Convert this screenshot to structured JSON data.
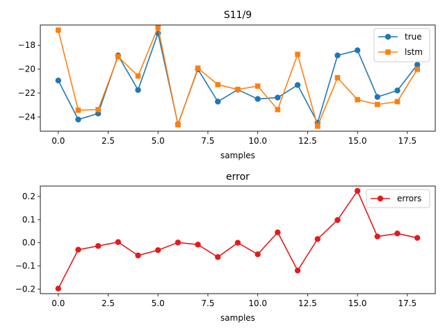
{
  "chart_data": [
    {
      "type": "line",
      "title": "S11/9",
      "xlabel": "samples",
      "ylabel": "",
      "xlim": [
        -0.9,
        18.9
      ],
      "ylim": [
        -25.2,
        -16.3
      ],
      "xticks": [
        0.0,
        2.5,
        5.0,
        7.5,
        10.0,
        12.5,
        15.0,
        17.5
      ],
      "xtick_labels": [
        "0.0",
        "2.5",
        "5.0",
        "7.5",
        "10.0",
        "12.5",
        "15.0",
        "17.5"
      ],
      "yticks": [
        -18,
        -20,
        -22,
        -24
      ],
      "ytick_labels": [
        "−18",
        "−20",
        "−22",
        "−24"
      ],
      "legend_position": "top-right",
      "grid": false,
      "x": [
        0,
        1,
        2,
        3,
        4,
        5,
        6,
        7,
        8,
        9,
        10,
        11,
        12,
        13,
        14,
        15,
        16,
        17,
        18
      ],
      "series": [
        {
          "name": "true",
          "color": "#1f77b4",
          "marker": "circle",
          "values": [
            -20.95,
            -24.22,
            -23.72,
            -18.85,
            -21.75,
            -16.98,
            -24.61,
            -20.01,
            -22.72,
            -21.72,
            -22.5,
            -22.38,
            -21.33,
            -24.49,
            -18.85,
            -18.42,
            -22.33,
            -21.79,
            -19.63
          ]
        },
        {
          "name": "lstm",
          "color": "#ff7f0e",
          "marker": "square",
          "values": [
            -16.73,
            -23.44,
            -23.39,
            -18.95,
            -20.57,
            -16.5,
            -24.66,
            -19.92,
            -21.3,
            -21.7,
            -21.42,
            -23.39,
            -18.76,
            -24.78,
            -20.72,
            -22.56,
            -22.96,
            -22.72,
            -20.01
          ]
        }
      ]
    },
    {
      "type": "line",
      "title": "error",
      "xlabel": "samples",
      "ylabel": "",
      "xlim": [
        -0.9,
        18.9
      ],
      "ylim": [
        -0.22,
        0.245
      ],
      "xticks": [
        0.0,
        2.5,
        5.0,
        7.5,
        10.0,
        12.5,
        15.0,
        17.5
      ],
      "xtick_labels": [
        "0.0",
        "2.5",
        "5.0",
        "7.5",
        "10.0",
        "12.5",
        "15.0",
        "17.5"
      ],
      "yticks": [
        0.2,
        0.1,
        0.0,
        -0.1,
        -0.2
      ],
      "ytick_labels": [
        "0.2",
        "0.1",
        "0.0",
        "−0.1",
        "−0.2"
      ],
      "legend_position": "top-right",
      "grid": false,
      "x": [
        0,
        1,
        2,
        3,
        4,
        5,
        6,
        7,
        8,
        9,
        10,
        11,
        12,
        13,
        14,
        15,
        16,
        17,
        18
      ],
      "series": [
        {
          "name": "errors",
          "color": "#e41a1c",
          "marker": "circle",
          "values": [
            -0.198,
            -0.03,
            -0.014,
            0.003,
            -0.055,
            -0.032,
            0.001,
            -0.008,
            -0.062,
            0.0,
            -0.05,
            0.045,
            -0.12,
            0.016,
            0.098,
            0.224,
            0.027,
            0.04,
            0.021
          ]
        }
      ]
    }
  ]
}
